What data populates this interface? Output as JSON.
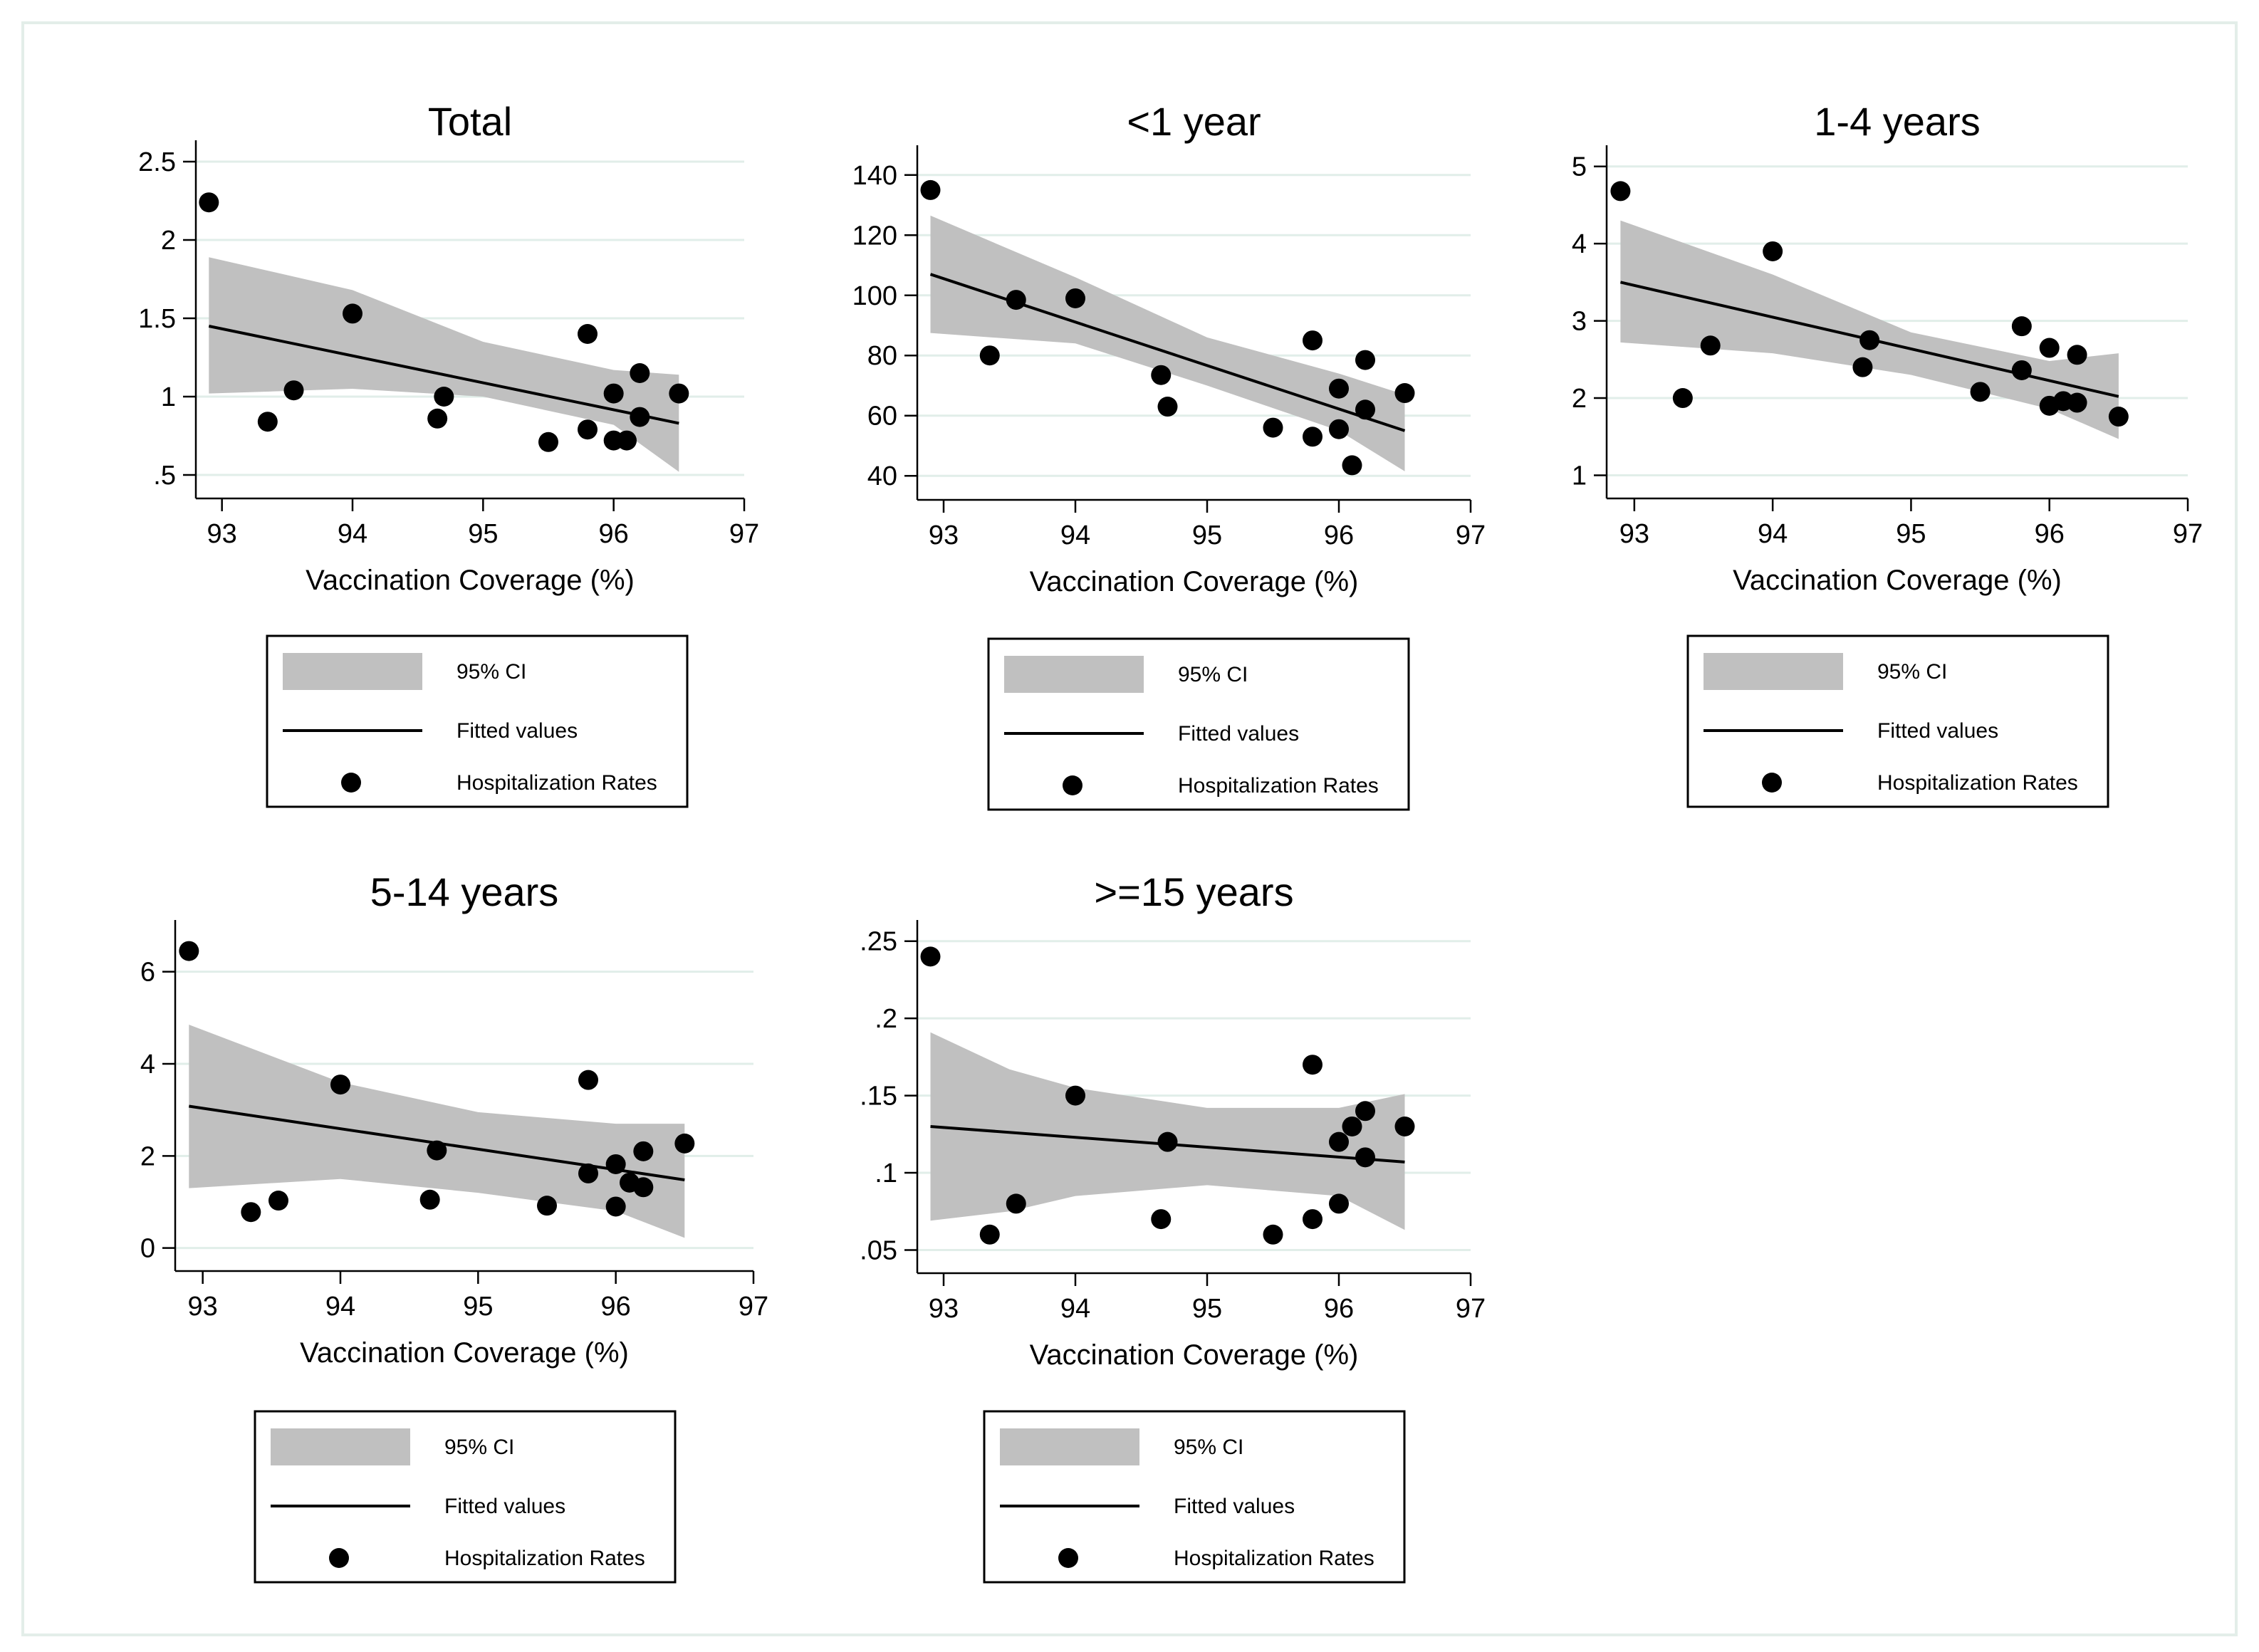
{
  "figure": {
    "legend": {
      "ci_label": "95% CI",
      "fit_label": "Fitted values",
      "points_label": "Hospitalization Rates"
    }
  },
  "chart_data": [
    {
      "type": "scatter",
      "title": "Total",
      "xlabel": "Vaccination Coverage (%)",
      "ylabel": "",
      "xlim": [
        92.8,
        97
      ],
      "ylim": [
        0.35,
        2.6
      ],
      "xticks": [
        93,
        94,
        95,
        96,
        97
      ],
      "xtick_labels": [
        "93",
        "94",
        "95",
        "96",
        "97"
      ],
      "yticks": [
        0.5,
        1,
        1.5,
        2,
        2.5
      ],
      "ytick_labels": [
        ".5",
        "1",
        "1.5",
        "2",
        "2.5"
      ],
      "grid": true,
      "legend_position": "bottom",
      "points": [
        [
          92.9,
          2.24
        ],
        [
          93.35,
          0.84
        ],
        [
          93.55,
          1.04
        ],
        [
          94.0,
          1.53
        ],
        [
          94.65,
          0.86
        ],
        [
          94.7,
          1.0
        ],
        [
          95.5,
          0.71
        ],
        [
          95.8,
          1.4
        ],
        [
          95.8,
          0.79
        ],
        [
          96.0,
          1.02
        ],
        [
          96.0,
          0.72
        ],
        [
          96.1,
          0.72
        ],
        [
          96.2,
          1.15
        ],
        [
          96.2,
          0.87
        ],
        [
          96.5,
          1.02
        ]
      ],
      "fit": {
        "x": [
          92.9,
          96.5
        ],
        "y": [
          1.45,
          0.83
        ]
      },
      "ci": {
        "x": [
          92.9,
          94.0,
          95.0,
          96.0,
          96.5
        ],
        "lower": [
          1.02,
          1.05,
          1.0,
          0.82,
          0.52
        ],
        "upper": [
          1.89,
          1.68,
          1.35,
          1.17,
          1.14
        ]
      }
    },
    {
      "type": "scatter",
      "title": "<1 year",
      "xlabel": "Vaccination Coverage (%)",
      "ylabel": "",
      "xlim": [
        92.8,
        97
      ],
      "ylim": [
        32,
        148
      ],
      "xticks": [
        93,
        94,
        95,
        96,
        97
      ],
      "xtick_labels": [
        "93",
        "94",
        "95",
        "96",
        "97"
      ],
      "yticks": [
        40,
        60,
        80,
        100,
        120,
        140
      ],
      "ytick_labels": [
        "40",
        "60",
        "80",
        "100",
        "120",
        "140"
      ],
      "grid": true,
      "legend_position": "bottom",
      "points": [
        [
          92.9,
          135
        ],
        [
          93.35,
          80
        ],
        [
          93.55,
          98.5
        ],
        [
          94.0,
          99
        ],
        [
          94.65,
          73.5
        ],
        [
          94.7,
          63
        ],
        [
          95.5,
          56
        ],
        [
          95.8,
          85
        ],
        [
          95.8,
          53
        ],
        [
          96.0,
          69
        ],
        [
          96.0,
          55.5
        ],
        [
          96.1,
          43.5
        ],
        [
          96.2,
          78.5
        ],
        [
          96.2,
          62
        ],
        [
          96.5,
          67.5
        ]
      ],
      "fit": {
        "x": [
          92.9,
          96.5
        ],
        "y": [
          107,
          55
        ]
      },
      "ci": {
        "x": [
          92.9,
          94.0,
          95.0,
          96.0,
          96.5
        ],
        "lower": [
          87.5,
          84,
          70,
          55,
          41.5
        ],
        "upper": [
          126.5,
          106,
          86,
          74,
          67
        ]
      }
    },
    {
      "type": "scatter",
      "title": "1-4 years",
      "xlabel": "Vaccination Coverage (%)",
      "ylabel": "",
      "xlim": [
        92.8,
        97
      ],
      "ylim": [
        0.7,
        5.2
      ],
      "xticks": [
        93,
        94,
        95,
        96,
        97
      ],
      "xtick_labels": [
        "93",
        "94",
        "95",
        "96",
        "97"
      ],
      "yticks": [
        1,
        2,
        3,
        4,
        5
      ],
      "ytick_labels": [
        "1",
        "2",
        "3",
        "4",
        "5"
      ],
      "grid": true,
      "legend_position": "bottom",
      "points": [
        [
          92.9,
          4.68
        ],
        [
          93.35,
          2.0
        ],
        [
          93.55,
          2.68
        ],
        [
          94.0,
          3.9
        ],
        [
          94.65,
          2.4
        ],
        [
          94.7,
          2.75
        ],
        [
          95.5,
          2.08
        ],
        [
          95.8,
          2.93
        ],
        [
          95.8,
          2.36
        ],
        [
          96.0,
          2.65
        ],
        [
          96.0,
          1.9
        ],
        [
          96.1,
          1.96
        ],
        [
          96.2,
          2.56
        ],
        [
          96.2,
          1.94
        ],
        [
          96.5,
          1.76
        ]
      ],
      "fit": {
        "x": [
          92.9,
          96.5
        ],
        "y": [
          3.5,
          2.02
        ]
      },
      "ci": {
        "x": [
          92.9,
          94.0,
          95.0,
          96.0,
          96.5
        ],
        "lower": [
          2.72,
          2.58,
          2.3,
          1.86,
          1.47
        ],
        "upper": [
          4.3,
          3.6,
          2.85,
          2.48,
          2.58
        ]
      }
    },
    {
      "type": "scatter",
      "title": "5-14 years",
      "xlabel": "Vaccination Coverage (%)",
      "ylabel": "",
      "xlim": [
        92.8,
        97
      ],
      "ylim": [
        -0.5,
        7.0
      ],
      "xticks": [
        93,
        94,
        95,
        96,
        97
      ],
      "xtick_labels": [
        "93",
        "94",
        "95",
        "96",
        "97"
      ],
      "yticks": [
        0,
        2,
        4,
        6
      ],
      "ytick_labels": [
        "0",
        "2",
        "4",
        "6"
      ],
      "grid": true,
      "legend_position": "bottom",
      "points": [
        [
          92.9,
          6.45
        ],
        [
          93.35,
          0.78
        ],
        [
          93.55,
          1.03
        ],
        [
          94.0,
          3.55
        ],
        [
          94.65,
          1.05
        ],
        [
          94.7,
          2.12
        ],
        [
          95.5,
          0.92
        ],
        [
          95.8,
          3.65
        ],
        [
          95.8,
          1.62
        ],
        [
          96.0,
          1.82
        ],
        [
          96.0,
          0.9
        ],
        [
          96.1,
          1.42
        ],
        [
          96.2,
          2.1
        ],
        [
          96.2,
          1.32
        ],
        [
          96.5,
          2.27
        ]
      ],
      "fit": {
        "x": [
          92.9,
          96.5
        ],
        "y": [
          3.08,
          1.48
        ]
      },
      "ci": {
        "x": [
          92.9,
          94.0,
          95.0,
          96.0,
          96.5
        ],
        "lower": [
          1.3,
          1.5,
          1.2,
          0.8,
          0.22
        ],
        "upper": [
          4.85,
          3.6,
          2.95,
          2.7,
          2.7
        ]
      }
    },
    {
      "type": "scatter",
      "title": ">=15 years",
      "xlabel": "Vaccination Coverage (%)",
      "ylabel": "",
      "xlim": [
        92.8,
        97
      ],
      "ylim": [
        0.035,
        0.26
      ],
      "xticks": [
        93,
        94,
        95,
        96,
        97
      ],
      "xtick_labels": [
        "93",
        "94",
        "95",
        "96",
        "97"
      ],
      "yticks": [
        0.05,
        0.1,
        0.15,
        0.2,
        0.25
      ],
      "ytick_labels": [
        ".05",
        ".1",
        ".15",
        ".2",
        ".25"
      ],
      "grid": true,
      "legend_position": "bottom",
      "points": [
        [
          92.9,
          0.24
        ],
        [
          93.35,
          0.06
        ],
        [
          93.55,
          0.08
        ],
        [
          94.0,
          0.15
        ],
        [
          94.65,
          0.07
        ],
        [
          94.7,
          0.12
        ],
        [
          95.5,
          0.06
        ],
        [
          95.8,
          0.17
        ],
        [
          95.8,
          0.07
        ],
        [
          96.0,
          0.12
        ],
        [
          96.0,
          0.08
        ],
        [
          96.1,
          0.13
        ],
        [
          96.2,
          0.14
        ],
        [
          96.2,
          0.11
        ],
        [
          96.5,
          0.13
        ]
      ],
      "fit": {
        "x": [
          92.9,
          96.5
        ],
        "y": [
          0.13,
          0.107
        ]
      },
      "ci": {
        "x": [
          92.9,
          93.5,
          94.0,
          95.0,
          96.0,
          96.5
        ],
        "lower": [
          0.069,
          0.075,
          0.085,
          0.092,
          0.085,
          0.063
        ],
        "upper": [
          0.191,
          0.167,
          0.155,
          0.142,
          0.142,
          0.151
        ]
      }
    }
  ]
}
